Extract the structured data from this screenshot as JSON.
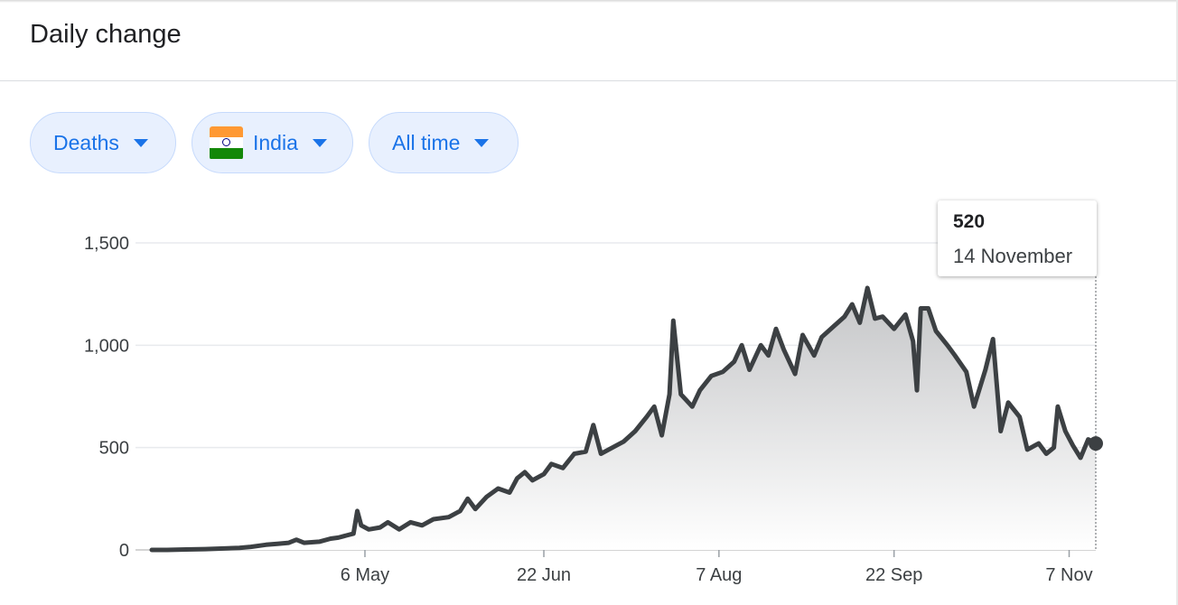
{
  "header": {
    "title": "Daily change"
  },
  "filters": {
    "metric": "Deaths",
    "country": "India",
    "range": "All time"
  },
  "tooltip": {
    "value": "520",
    "date": "14 November"
  },
  "colors": {
    "line": "#3c4043",
    "chip_bg": "#e8f0fe",
    "chip_text": "#1a73e8",
    "grid": "#e8eaed",
    "area_top": "#c4c5c7",
    "area_bottom": "#ffffff"
  },
  "chart_data": {
    "type": "area",
    "title": "",
    "xlabel": "",
    "ylabel": "",
    "ylim": [
      0,
      1500
    ],
    "x_start": "2020-03-11",
    "x_end": "2020-11-14",
    "yticks": [
      0,
      500,
      1000,
      1500
    ],
    "ytick_labels": [
      "0",
      "500",
      "1,000",
      "1,500"
    ],
    "xticks": [
      "2020-05-06",
      "2020-06-22",
      "2020-08-07",
      "2020-09-22",
      "2020-11-07"
    ],
    "xtick_labels": [
      "6 May",
      "22 Jun",
      "7 Aug",
      "22 Sep",
      "7 Nov"
    ],
    "grid": true,
    "legend": "none",
    "highlight": {
      "date": "2020-11-14",
      "value": 520
    },
    "series": [
      {
        "points": [
          [
            "2020-03-11",
            0
          ],
          [
            "2020-03-15",
            0
          ],
          [
            "2020-03-20",
            2
          ],
          [
            "2020-03-25",
            4
          ],
          [
            "2020-03-30",
            7
          ],
          [
            "2020-04-03",
            10
          ],
          [
            "2020-04-06",
            15
          ],
          [
            "2020-04-10",
            25
          ],
          [
            "2020-04-13",
            30
          ],
          [
            "2020-04-16",
            35
          ],
          [
            "2020-04-18",
            50
          ],
          [
            "2020-04-20",
            35
          ],
          [
            "2020-04-24",
            40
          ],
          [
            "2020-04-27",
            55
          ],
          [
            "2020-04-29",
            60
          ],
          [
            "2020-05-01",
            70
          ],
          [
            "2020-05-03",
            80
          ],
          [
            "2020-05-04",
            190
          ],
          [
            "2020-05-05",
            120
          ],
          [
            "2020-05-07",
            100
          ],
          [
            "2020-05-10",
            110
          ],
          [
            "2020-05-12",
            135
          ],
          [
            "2020-05-15",
            100
          ],
          [
            "2020-05-18",
            135
          ],
          [
            "2020-05-21",
            120
          ],
          [
            "2020-05-24",
            150
          ],
          [
            "2020-05-28",
            160
          ],
          [
            "2020-05-31",
            190
          ],
          [
            "2020-06-02",
            250
          ],
          [
            "2020-06-04",
            200
          ],
          [
            "2020-06-07",
            260
          ],
          [
            "2020-06-10",
            300
          ],
          [
            "2020-06-13",
            280
          ],
          [
            "2020-06-15",
            350
          ],
          [
            "2020-06-17",
            380
          ],
          [
            "2020-06-19",
            340
          ],
          [
            "2020-06-22",
            370
          ],
          [
            "2020-06-24",
            420
          ],
          [
            "2020-06-27",
            400
          ],
          [
            "2020-06-30",
            470
          ],
          [
            "2020-07-03",
            480
          ],
          [
            "2020-07-05",
            610
          ],
          [
            "2020-07-07",
            470
          ],
          [
            "2020-07-10",
            500
          ],
          [
            "2020-07-13",
            530
          ],
          [
            "2020-07-16",
            580
          ],
          [
            "2020-07-19",
            650
          ],
          [
            "2020-07-21",
            700
          ],
          [
            "2020-07-23",
            560
          ],
          [
            "2020-07-25",
            760
          ],
          [
            "2020-07-26",
            1120
          ],
          [
            "2020-07-28",
            760
          ],
          [
            "2020-07-31",
            700
          ],
          [
            "2020-08-02",
            780
          ],
          [
            "2020-08-05",
            850
          ],
          [
            "2020-08-08",
            870
          ],
          [
            "2020-08-11",
            920
          ],
          [
            "2020-08-13",
            1000
          ],
          [
            "2020-08-15",
            880
          ],
          [
            "2020-08-18",
            1000
          ],
          [
            "2020-08-20",
            950
          ],
          [
            "2020-08-22",
            1080
          ],
          [
            "2020-08-24",
            980
          ],
          [
            "2020-08-27",
            860
          ],
          [
            "2020-08-29",
            1050
          ],
          [
            "2020-09-01",
            950
          ],
          [
            "2020-09-03",
            1040
          ],
          [
            "2020-09-06",
            1090
          ],
          [
            "2020-09-09",
            1140
          ],
          [
            "2020-09-11",
            1200
          ],
          [
            "2020-09-13",
            1110
          ],
          [
            "2020-09-15",
            1280
          ],
          [
            "2020-09-17",
            1130
          ],
          [
            "2020-09-19",
            1140
          ],
          [
            "2020-09-22",
            1080
          ],
          [
            "2020-09-25",
            1150
          ],
          [
            "2020-09-27",
            1020
          ],
          [
            "2020-09-28",
            780
          ],
          [
            "2020-09-29",
            1180
          ],
          [
            "2020-10-01",
            1180
          ],
          [
            "2020-10-03",
            1070
          ],
          [
            "2020-10-06",
            1000
          ],
          [
            "2020-10-08",
            950
          ],
          [
            "2020-10-11",
            870
          ],
          [
            "2020-10-13",
            700
          ],
          [
            "2020-10-16",
            880
          ],
          [
            "2020-10-18",
            1030
          ],
          [
            "2020-10-20",
            580
          ],
          [
            "2020-10-22",
            720
          ],
          [
            "2020-10-25",
            650
          ],
          [
            "2020-10-27",
            490
          ],
          [
            "2020-10-30",
            520
          ],
          [
            "2020-11-01",
            470
          ],
          [
            "2020-11-03",
            500
          ],
          [
            "2020-11-04",
            700
          ],
          [
            "2020-11-06",
            580
          ],
          [
            "2020-11-08",
            510
          ],
          [
            "2020-11-10",
            450
          ],
          [
            "2020-11-12",
            540
          ],
          [
            "2020-11-14",
            520
          ]
        ]
      }
    ]
  }
}
